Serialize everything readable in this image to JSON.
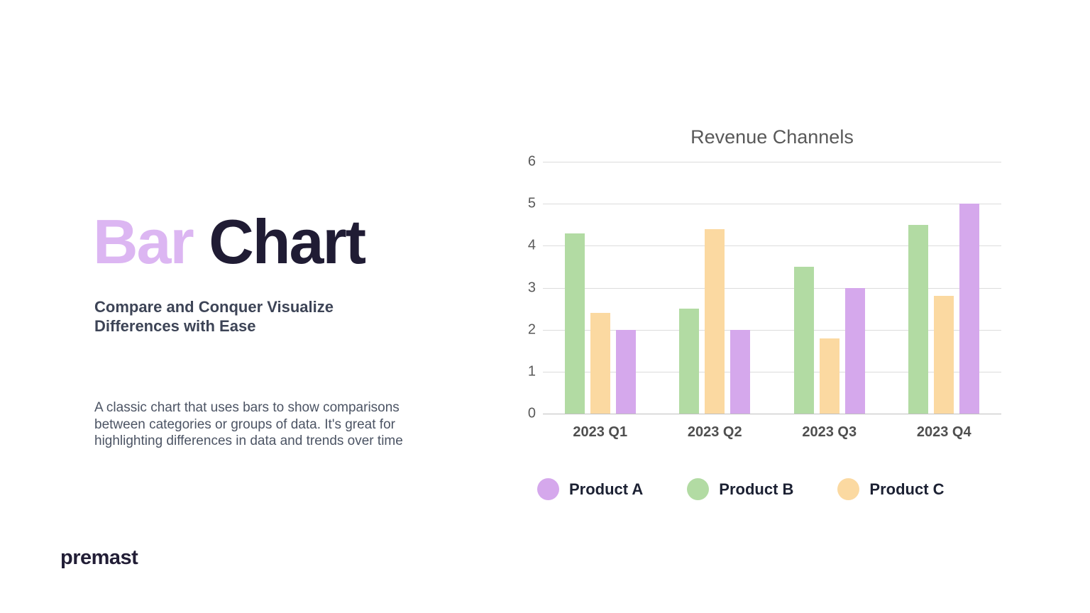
{
  "page": {
    "background": "#ffffff"
  },
  "left_panel": {
    "title": {
      "accent": "Bar",
      "rest": " Chart",
      "accent_color": "#dcb6f2",
      "rest_color": "#201c34"
    },
    "subtitle": "Compare and Conquer Visualize Differences with Ease",
    "description": "A classic chart that uses bars to show comparisons between categories or groups of data. It's great for highlighting differences in data and trends over time",
    "logo_text": "premast"
  },
  "chart_data": {
    "type": "bar",
    "title": "Revenue Channels",
    "title_color": "#595959",
    "categories": [
      "2023 Q1",
      "2023 Q2",
      "2023 Q3",
      "2023 Q4"
    ],
    "series": [
      {
        "name": "Product A",
        "color": "#d5a8ec",
        "values": [
          2.0,
          2.0,
          3.0,
          5.0
        ]
      },
      {
        "name": "Product B",
        "color": "#b2dba3",
        "values": [
          4.3,
          2.5,
          3.5,
          4.5
        ]
      },
      {
        "name": "Product C",
        "color": "#fbd9a1",
        "values": [
          2.4,
          4.4,
          1.8,
          2.8
        ]
      }
    ],
    "bar_order": [
      "Product B",
      "Product C",
      "Product A"
    ],
    "ylim": [
      0,
      6
    ],
    "yticks": [
      0,
      1,
      2,
      3,
      4,
      5,
      6
    ],
    "grid": true,
    "gridline_color": "#dcdcdc",
    "axis_line_color": "#bfbfbf",
    "tick_label_color": "#595959",
    "legend": [
      "Product A",
      "Product B",
      "Product C"
    ],
    "legend_position": "bottom"
  }
}
